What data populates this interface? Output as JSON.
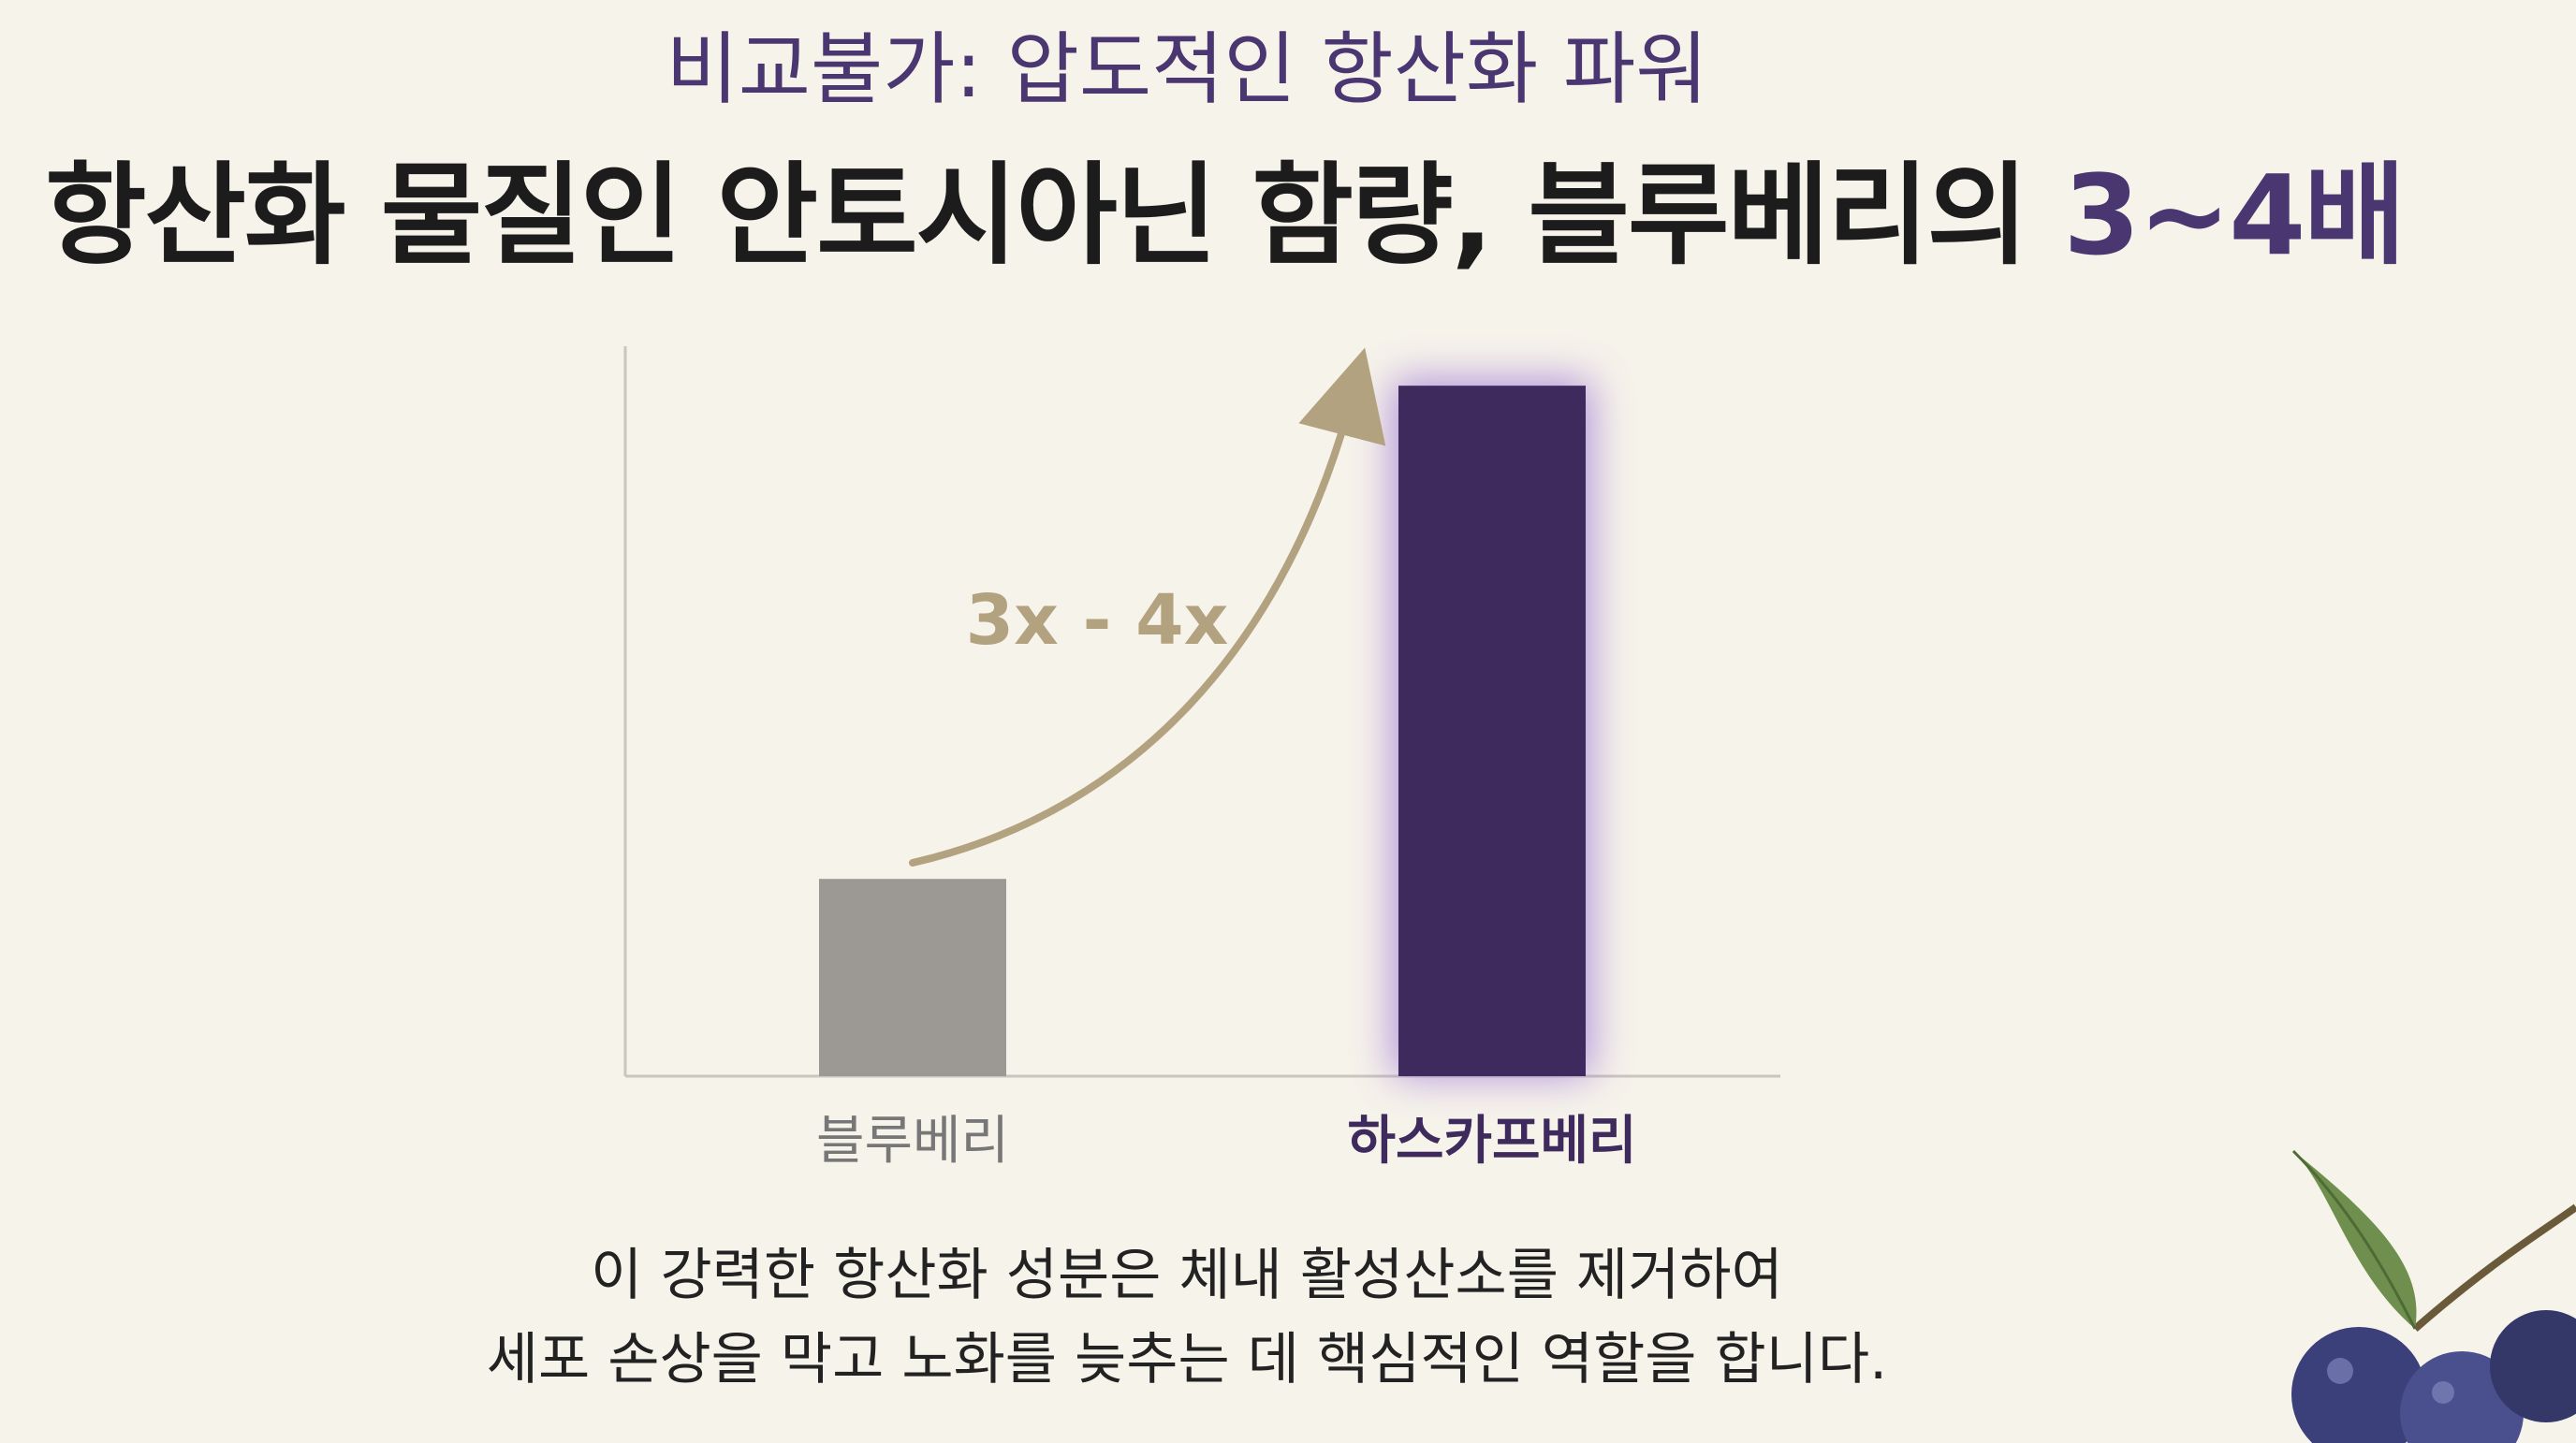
{
  "header": {
    "subtitle": "비교불가: 압도적인 항산화 파워",
    "headline_main": "항산화 물질인 안토시아닌 함량, 블루베리의 ",
    "headline_accent": "3~4배"
  },
  "chart_data": {
    "type": "bar",
    "title": "",
    "xlabel": "",
    "ylabel": "",
    "categories": [
      "블루베리",
      "하스카프베리"
    ],
    "values": [
      1,
      3.5
    ],
    "ylim": [
      0,
      3.7
    ],
    "grid": false,
    "axis_ticks": false,
    "annotation": "3x - 4x",
    "bar_colors": [
      "#9c9994",
      "#3e2a5c"
    ],
    "label_colors": [
      "#777777",
      "#3e2a5c"
    ],
    "arrow_color": "#b3a27f",
    "glow_color": "#9a6fd6"
  },
  "description": {
    "line1": "이 강력한 항산화 성분은 체내 활성산소를 제거하여",
    "line2": "세포 손상을 막고 노화를 늦추는 데 핵심적인 역할을 합니다."
  },
  "colors": {
    "background": "#f6f3ea",
    "accent": "#4a3670",
    "text": "#1c1c1c"
  },
  "decoration": {
    "icon": "blueberry-branch-icon"
  }
}
